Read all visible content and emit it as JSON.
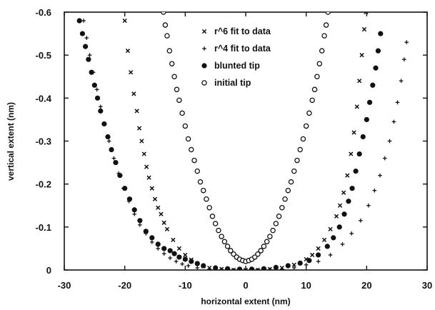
{
  "chart_data": {
    "type": "scatter",
    "title": "",
    "xlabel": "horizontal extent (nm)",
    "ylabel": "vertical extent (nm)",
    "xlim": [
      -30,
      30
    ],
    "ylim": [
      0,
      -0.6
    ],
    "xticks": [
      -30,
      -20,
      -10,
      0,
      10,
      20,
      30
    ],
    "yticks": [
      0,
      -0.1,
      -0.2,
      -0.3,
      -0.4,
      -0.5,
      -0.6
    ],
    "x_tick_labels": [
      "-30",
      "-20",
      "-10",
      "0",
      "10",
      "20",
      "30"
    ],
    "y_tick_labels": [
      "0",
      "-0.1",
      "-0.2",
      "-0.3",
      "-0.4",
      "-0.5",
      "-0.6"
    ],
    "grid": false,
    "legend": {
      "placement": "top-center",
      "entries": [
        {
          "label": "r^6 fit to data",
          "marker": "x"
        },
        {
          "label": "r^4 fit to data",
          "marker": "+"
        },
        {
          "label": "blunted tip",
          "marker": "filled-circle"
        },
        {
          "label": "initial tip",
          "marker": "open-circle"
        }
      ]
    },
    "series": [
      {
        "name": "r^6 fit to data",
        "marker": "x",
        "points": [
          [
            -20,
            -0.58
          ],
          [
            -19.5,
            -0.51
          ],
          [
            -19,
            -0.46
          ],
          [
            -18.5,
            -0.41
          ],
          [
            -18,
            -0.37
          ],
          [
            -17.6,
            -0.33
          ],
          [
            -17.2,
            -0.3
          ],
          [
            -16.8,
            -0.27
          ],
          [
            -16.4,
            -0.24
          ],
          [
            -16,
            -0.215
          ],
          [
            -15.5,
            -0.19
          ],
          [
            -15,
            -0.165
          ],
          [
            -14.5,
            -0.145
          ],
          [
            -14,
            -0.13
          ],
          [
            -13.5,
            -0.11
          ],
          [
            -13,
            -0.095
          ],
          [
            -12,
            -0.07
          ],
          [
            -11,
            -0.05
          ],
          [
            -10,
            -0.035
          ],
          [
            -9,
            -0.024
          ],
          [
            -8,
            -0.015
          ],
          [
            -7,
            -0.009
          ],
          [
            -6,
            -0.005
          ],
          [
            -4,
            -0.002
          ],
          [
            -2,
            0
          ],
          [
            0,
            0
          ],
          [
            2,
            0
          ],
          [
            4,
            -0.002
          ],
          [
            6,
            -0.005
          ],
          [
            8,
            -0.012
          ],
          [
            10,
            -0.025
          ],
          [
            11,
            -0.035
          ],
          [
            12,
            -0.05
          ],
          [
            13,
            -0.07
          ],
          [
            14,
            -0.095
          ],
          [
            15,
            -0.125
          ],
          [
            15.6,
            -0.15
          ],
          [
            16.2,
            -0.18
          ],
          [
            16.8,
            -0.22
          ],
          [
            17.4,
            -0.27
          ],
          [
            17.9,
            -0.32
          ],
          [
            18.4,
            -0.38
          ],
          [
            18.8,
            -0.44
          ],
          [
            19.2,
            -0.5
          ],
          [
            19.6,
            -0.56
          ],
          [
            19.9,
            -0.6
          ]
        ]
      },
      {
        "name": "r^4 fit to data",
        "marker": "+",
        "points": [
          [
            -26.8,
            -0.58
          ],
          [
            -26.3,
            -0.54
          ],
          [
            -25.8,
            -0.5
          ],
          [
            -25.2,
            -0.46
          ],
          [
            -24.6,
            -0.42
          ],
          [
            -24,
            -0.38
          ],
          [
            -23.3,
            -0.34
          ],
          [
            -22.6,
            -0.3
          ],
          [
            -21.8,
            -0.26
          ],
          [
            -21,
            -0.225
          ],
          [
            -20.2,
            -0.19
          ],
          [
            -19.3,
            -0.16
          ],
          [
            -18.4,
            -0.13
          ],
          [
            -17.5,
            -0.105
          ],
          [
            -16.5,
            -0.085
          ],
          [
            -15.5,
            -0.065
          ],
          [
            -14.5,
            -0.05
          ],
          [
            -13.5,
            -0.038
          ],
          [
            -12.5,
            -0.028
          ],
          [
            -11.5,
            -0.02
          ],
          [
            -10.5,
            -0.014
          ],
          [
            -9.5,
            -0.01
          ],
          [
            -8,
            -0.005
          ],
          [
            -6,
            -0.002
          ],
          [
            -4,
            -0.001
          ],
          [
            -2,
            0
          ],
          [
            0,
            0
          ],
          [
            2,
            0
          ],
          [
            4,
            -0.001
          ],
          [
            6,
            -0.002
          ],
          [
            8,
            -0.005
          ],
          [
            10,
            -0.012
          ],
          [
            12,
            -0.02
          ],
          [
            14,
            -0.035
          ],
          [
            16,
            -0.06
          ],
          [
            17.5,
            -0.085
          ],
          [
            19,
            -0.115
          ],
          [
            20.3,
            -0.15
          ],
          [
            21.3,
            -0.185
          ],
          [
            22.2,
            -0.22
          ],
          [
            23,
            -0.26
          ],
          [
            23.8,
            -0.3
          ],
          [
            24.5,
            -0.345
          ],
          [
            25.1,
            -0.39
          ],
          [
            25.7,
            -0.44
          ],
          [
            26.2,
            -0.49
          ],
          [
            26.6,
            -0.53
          ]
        ]
      },
      {
        "name": "blunted tip",
        "marker": "filled-circle",
        "points": [
          [
            -27.5,
            -0.58
          ],
          [
            -27,
            -0.55
          ],
          [
            -26.5,
            -0.52
          ],
          [
            -26,
            -0.49
          ],
          [
            -25.5,
            -0.46
          ],
          [
            -25,
            -0.43
          ],
          [
            -24.5,
            -0.4
          ],
          [
            -24,
            -0.37
          ],
          [
            -23.4,
            -0.34
          ],
          [
            -22.8,
            -0.31
          ],
          [
            -22.2,
            -0.28
          ],
          [
            -21.5,
            -0.25
          ],
          [
            -20.8,
            -0.22
          ],
          [
            -20,
            -0.19
          ],
          [
            -19.2,
            -0.165
          ],
          [
            -18.4,
            -0.14
          ],
          [
            -17.5,
            -0.115
          ],
          [
            -16.5,
            -0.09
          ],
          [
            -15.5,
            -0.075
          ],
          [
            -14.5,
            -0.06
          ],
          [
            -13.5,
            -0.05
          ],
          [
            -12.5,
            -0.045
          ],
          [
            -11.8,
            -0.038
          ],
          [
            -11,
            -0.03
          ],
          [
            -10,
            -0.025
          ],
          [
            -9,
            -0.02
          ],
          [
            -8,
            -0.015
          ],
          [
            -7,
            -0.01
          ],
          [
            -5,
            -0.005
          ],
          [
            -3,
            -0.003
          ],
          [
            -1,
            -0.002
          ],
          [
            1,
            -0.002
          ],
          [
            3,
            -0.003
          ],
          [
            5,
            -0.006
          ],
          [
            7,
            -0.01
          ],
          [
            9,
            -0.016
          ],
          [
            10.5,
            -0.022
          ],
          [
            12,
            -0.035
          ],
          [
            13.5,
            -0.055
          ],
          [
            14.5,
            -0.075
          ],
          [
            15.5,
            -0.1
          ],
          [
            16.3,
            -0.13
          ],
          [
            17,
            -0.16
          ],
          [
            17.6,
            -0.19
          ],
          [
            18.2,
            -0.23
          ],
          [
            18.8,
            -0.27
          ],
          [
            19.4,
            -0.31
          ],
          [
            20,
            -0.35
          ],
          [
            20.5,
            -0.39
          ],
          [
            21,
            -0.43
          ],
          [
            21.5,
            -0.47
          ],
          [
            21.9,
            -0.51
          ],
          [
            22.3,
            -0.55
          ]
        ]
      },
      {
        "name": "initial tip",
        "marker": "open-circle",
        "points": [
          [
            -13.6,
            -0.6
          ],
          [
            -13.3,
            -0.57
          ],
          [
            -13,
            -0.545
          ],
          [
            -12.6,
            -0.51
          ],
          [
            -12.2,
            -0.48
          ],
          [
            -11.8,
            -0.45
          ],
          [
            -11.4,
            -0.42
          ],
          [
            -11,
            -0.395
          ],
          [
            -10.5,
            -0.365
          ],
          [
            -10,
            -0.335
          ],
          [
            -9.5,
            -0.305
          ],
          [
            -9,
            -0.28
          ],
          [
            -8.5,
            -0.255
          ],
          [
            -8,
            -0.23
          ],
          [
            -7.5,
            -0.205
          ],
          [
            -7,
            -0.185
          ],
          [
            -6.5,
            -0.165
          ],
          [
            -6,
            -0.145
          ],
          [
            -5.5,
            -0.125
          ],
          [
            -5,
            -0.108
          ],
          [
            -4.5,
            -0.092
          ],
          [
            -4,
            -0.078
          ],
          [
            -3.5,
            -0.066
          ],
          [
            -3,
            -0.055
          ],
          [
            -2.5,
            -0.045
          ],
          [
            -2,
            -0.037
          ],
          [
            -1.5,
            -0.03
          ],
          [
            -1,
            -0.025
          ],
          [
            -0.5,
            -0.022
          ],
          [
            0,
            -0.02
          ],
          [
            0.5,
            -0.022
          ],
          [
            1,
            -0.025
          ],
          [
            1.5,
            -0.03
          ],
          [
            2,
            -0.037
          ],
          [
            2.5,
            -0.045
          ],
          [
            3,
            -0.055
          ],
          [
            3.5,
            -0.066
          ],
          [
            4,
            -0.078
          ],
          [
            4.5,
            -0.092
          ],
          [
            5,
            -0.108
          ],
          [
            5.5,
            -0.125
          ],
          [
            6,
            -0.145
          ],
          [
            6.5,
            -0.165
          ],
          [
            7,
            -0.185
          ],
          [
            7.5,
            -0.205
          ],
          [
            8,
            -0.23
          ],
          [
            8.5,
            -0.255
          ],
          [
            9,
            -0.28
          ],
          [
            9.5,
            -0.305
          ],
          [
            10,
            -0.335
          ],
          [
            10.5,
            -0.365
          ],
          [
            11,
            -0.395
          ],
          [
            11.4,
            -0.42
          ],
          [
            11.8,
            -0.45
          ],
          [
            12.2,
            -0.48
          ],
          [
            12.6,
            -0.51
          ],
          [
            13,
            -0.545
          ],
          [
            13.3,
            -0.57
          ],
          [
            13.6,
            -0.6
          ]
        ]
      }
    ]
  }
}
